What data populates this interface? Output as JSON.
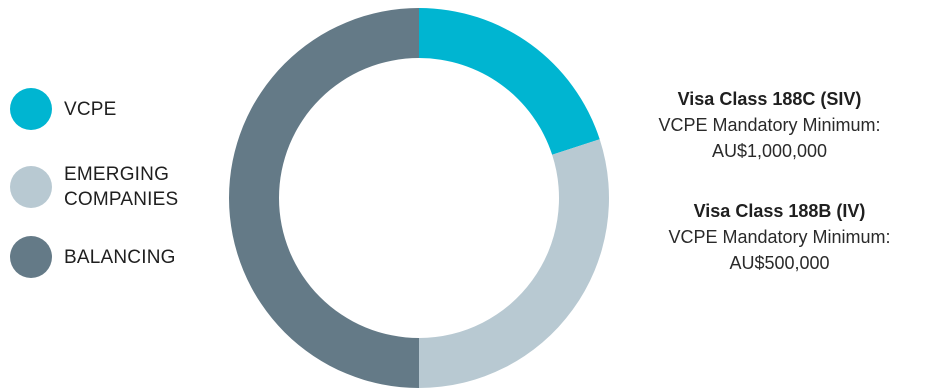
{
  "chart_data": {
    "type": "pie",
    "categories": [
      "VCPE",
      "EMERGING COMPANIES",
      "BALANCING"
    ],
    "values": [
      20,
      30,
      50
    ],
    "colors": [
      "#00b5d1",
      "#b8c9d2",
      "#647a87"
    ],
    "donut": true,
    "start_angle_deg": 0,
    "direction": "clockwise",
    "legend_position": "left"
  },
  "legend": {
    "items": [
      {
        "label": "VCPE",
        "color": "#00b5d1"
      },
      {
        "label": "EMERGING COMPANIES",
        "color": "#b8c9d2"
      },
      {
        "label": "BALANCING",
        "color": "#647a87"
      }
    ]
  },
  "notes": [
    {
      "title": "Visa Class 188C (SIV)",
      "line1": "VCPE Mandatory Minimum:",
      "line2": "AU$1,000,000"
    },
    {
      "title": "Visa Class 188B (IV)",
      "line1": "VCPE Mandatory Minimum:",
      "line2": "AU$500,000"
    }
  ]
}
